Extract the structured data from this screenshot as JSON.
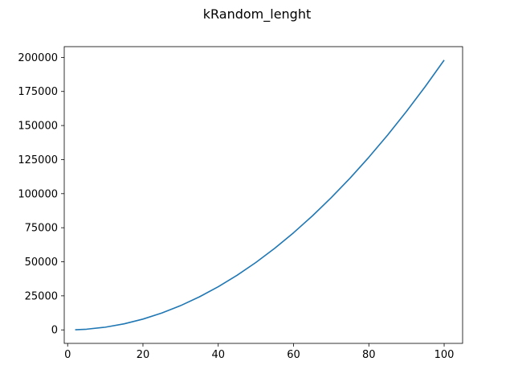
{
  "chart_data": {
    "type": "line",
    "title": "kRandom_lenght",
    "xlabel": "",
    "ylabel": "",
    "xlim": [
      -0.9,
      104.9
    ],
    "ylim": [
      -9900,
      207900
    ],
    "x_ticks": [
      0,
      20,
      40,
      60,
      80,
      100
    ],
    "y_ticks": [
      0,
      25000,
      50000,
      75000,
      100000,
      125000,
      150000,
      175000,
      200000
    ],
    "grid": false,
    "legend": "none",
    "series": [
      {
        "color": "#1f77b4",
        "x": [
          2,
          5,
          10,
          15,
          20,
          25,
          30,
          35,
          40,
          45,
          50,
          55,
          60,
          65,
          70,
          75,
          80,
          85,
          90,
          95,
          100
        ],
        "y": [
          79,
          495,
          1980,
          4455,
          7920,
          12375,
          17820,
          24255,
          31680,
          40095,
          49500,
          59895,
          71280,
          83655,
          97020,
          111375,
          126720,
          143055,
          160380,
          178695,
          198000
        ]
      }
    ]
  }
}
